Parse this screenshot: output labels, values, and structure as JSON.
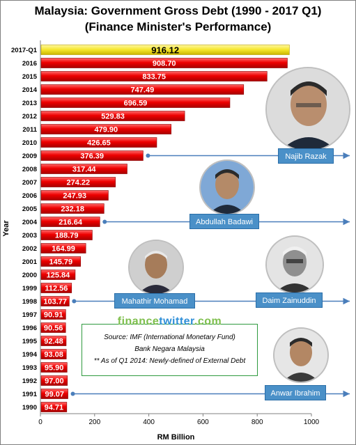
{
  "chart_data": {
    "type": "bar",
    "orientation": "horizontal",
    "title": "Malaysia: Government Gross Debt (1990 - 2017 Q1)",
    "subtitle": "(Finance Minister's Performance)",
    "xlabel": "RM Billion",
    "ylabel": "Year",
    "xlim": [
      0,
      1000
    ],
    "xticks": [
      "0",
      "200",
      "400",
      "600",
      "800",
      "1000"
    ],
    "grid": false,
    "colors": {
      "bar": "#ee0000",
      "highlight_bar": "#f5e62a"
    },
    "categories": [
      "2017-Q1",
      "2016",
      "2015",
      "2014",
      "2013",
      "2012",
      "2011",
      "2010",
      "2009",
      "2008",
      "2007",
      "2006",
      "2005",
      "2004",
      "2003",
      "2002",
      "2001",
      "2000",
      "1999",
      "1998",
      "1997",
      "1996",
      "1995",
      "1994",
      "1993",
      "1992",
      "1991",
      "1990"
    ],
    "values": [
      916.12,
      908.7,
      833.75,
      747.49,
      696.59,
      529.83,
      479.9,
      426.65,
      376.39,
      317.44,
      274.22,
      247.93,
      232.18,
      216.64,
      188.79,
      164.99,
      145.79,
      125.84,
      112.56,
      103.77,
      90.91,
      90.56,
      92.48,
      93.08,
      95.9,
      97.0,
      99.07,
      94.71
    ],
    "value_labels": [
      "916.12",
      "908.70",
      "833.75",
      "747.49",
      "696.59",
      "529.83",
      "479.90",
      "426.65",
      "376.39",
      "317.44",
      "274.22",
      "247.93",
      "232.18",
      "216.64",
      "188.79",
      "164.99",
      "145.79",
      "125.84",
      "112.56",
      "103.77",
      "90.91",
      "90.56",
      "92.48",
      "93.08",
      "95.90",
      "97.00",
      "99.07",
      "94.71"
    ],
    "highlight_index": 0
  },
  "annotations": {
    "ministers": [
      {
        "name": "Najib Razak",
        "year": "2009",
        "portrait_icon": "najib-portrait-icon"
      },
      {
        "name": "Abdullah Badawi",
        "year": "2004",
        "portrait_icon": "abdullah-portrait-icon"
      },
      {
        "name": "Mahathir Mohamad",
        "year": "1998",
        "portrait_icon": "mahathir-portrait-icon"
      },
      {
        "name": "Daim Zainuddin",
        "year": "1998",
        "portrait_icon": "daim-portrait-icon"
      },
      {
        "name": "Anwar Ibrahim",
        "year": "1991",
        "portrait_icon": "anwar-portrait-icon"
      }
    ],
    "arrow_color": "#4a7ebb"
  },
  "brand": {
    "part1": "finance",
    "part2": "twitter",
    "part3": ".com"
  },
  "source": {
    "line1": "Source: IMF (International Monetary Fund)",
    "line2": "Bank Negara Malaysia",
    "line3": "** As of Q1 2014: Newly-defined of External Debt"
  }
}
